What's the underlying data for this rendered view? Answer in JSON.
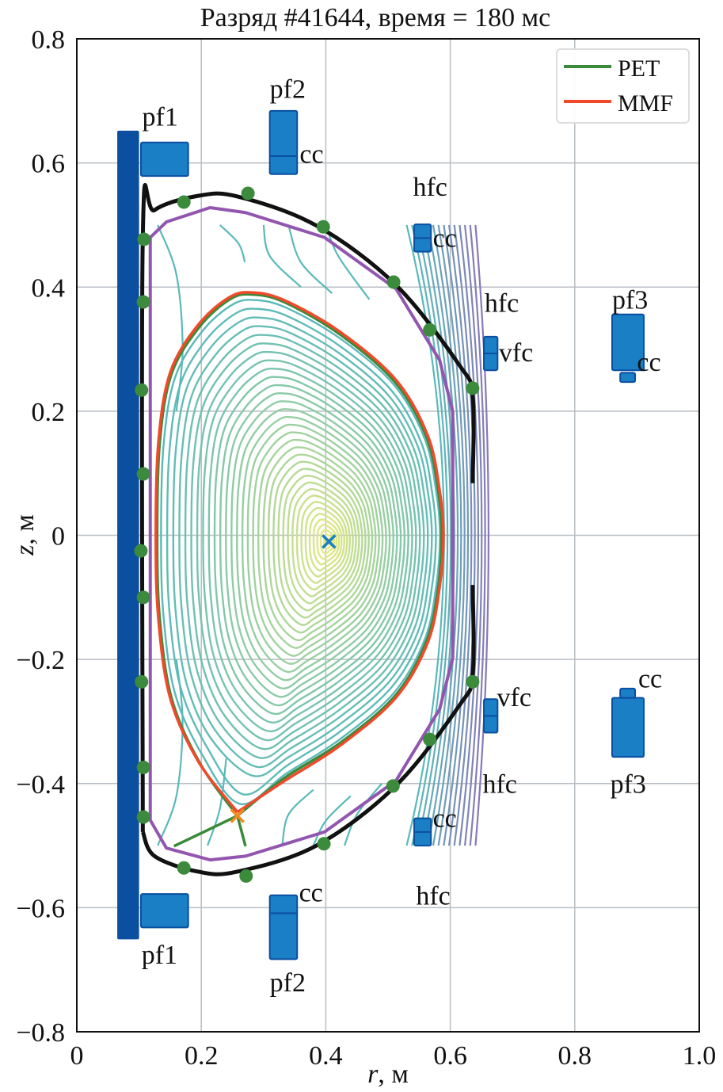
{
  "chart_data": {
    "type": "line",
    "title": "Разряд #41644, время = 180 мс",
    "xlabel": {
      "var": "r",
      "unit": ", м"
    },
    "ylabel": {
      "var": "z",
      "unit": ", м"
    },
    "xlim": [
      0,
      1.0
    ],
    "ylim": [
      -0.8,
      0.8
    ],
    "xticks": [
      "0",
      "0.2",
      "0.4",
      "0.6",
      "0.8",
      "1.0"
    ],
    "xtick_values": [
      0,
      0.2,
      0.4,
      0.6,
      0.8,
      1.0
    ],
    "yticks": [
      "−0.8",
      "−0.6",
      "−0.4",
      "−0.2",
      "0",
      "0.2",
      "0.4",
      "0.6",
      "0.8"
    ],
    "ytick_values": [
      -0.8,
      -0.6,
      -0.4,
      -0.2,
      0,
      0.2,
      0.4,
      0.6,
      0.8
    ],
    "grid": true,
    "legend": {
      "placement": "top-right",
      "entries": [
        {
          "name": "PET",
          "color": "#3a8a3a"
        },
        {
          "name": "MMF",
          "color": "#f04a2a"
        }
      ]
    },
    "colors": {
      "limiter": "#111111",
      "vessel": "#9256b0",
      "probes": "#3c8a3c",
      "coil_fill": "#1a7fc4",
      "coil_edge": "#0a4fa0",
      "solenoid": "#0a4fa0",
      "axis_marker": "#1a80c0",
      "xpoint_marker": "#f08a20",
      "contour_inner": "#f0ee80",
      "contour_mid": "#5ab9b9",
      "contour_outer": "#8878b8"
    },
    "magnetic_axis": {
      "r": 0.405,
      "z": -0.01
    },
    "x_point": {
      "r": 0.258,
      "z": -0.452
    },
    "limiter_upper": [
      [
        0.106,
        -0.478
      ],
      [
        0.106,
        0.48
      ],
      [
        0.125,
        0.524
      ],
      [
        0.195,
        0.547
      ],
      [
        0.258,
        0.546
      ],
      [
        0.385,
        0.499
      ],
      [
        0.513,
        0.403
      ],
      [
        0.614,
        0.275
      ],
      [
        0.636,
        0.224
      ],
      [
        0.636,
        0.084
      ]
    ],
    "limiter_lower": [
      [
        0.636,
        -0.08
      ],
      [
        0.636,
        -0.224
      ],
      [
        0.614,
        -0.275
      ],
      [
        0.513,
        -0.403
      ],
      [
        0.385,
        -0.5
      ],
      [
        0.258,
        -0.542
      ],
      [
        0.195,
        -0.542
      ],
      [
        0.125,
        -0.517
      ],
      [
        0.106,
        -0.478
      ]
    ],
    "vessel": [
      [
        0.118,
        0.48
      ],
      [
        0.144,
        0.505
      ],
      [
        0.214,
        0.528
      ],
      [
        0.271,
        0.52
      ],
      [
        0.398,
        0.48
      ],
      [
        0.513,
        0.397
      ],
      [
        0.583,
        0.282
      ],
      [
        0.604,
        0.199
      ],
      [
        0.604,
        -0.197
      ],
      [
        0.583,
        -0.28
      ],
      [
        0.513,
        -0.395
      ],
      [
        0.398,
        -0.478
      ],
      [
        0.271,
        -0.517
      ],
      [
        0.214,
        -0.523
      ],
      [
        0.144,
        -0.504
      ],
      [
        0.118,
        -0.459
      ],
      [
        0.118,
        0.48
      ]
    ],
    "series": [
      {
        "name": "MMF",
        "points": [
          [
            0.258,
            -0.446
          ],
          [
            0.195,
            -0.364
          ],
          [
            0.15,
            -0.262
          ],
          [
            0.131,
            -0.133
          ],
          [
            0.127,
            0
          ],
          [
            0.131,
            0.148
          ],
          [
            0.15,
            0.262
          ],
          [
            0.195,
            0.339
          ],
          [
            0.246,
            0.384
          ],
          [
            0.284,
            0.391
          ],
          [
            0.335,
            0.378
          ],
          [
            0.424,
            0.327
          ],
          [
            0.513,
            0.25
          ],
          [
            0.564,
            0.16
          ],
          [
            0.583,
            0.071
          ],
          [
            0.589,
            0
          ],
          [
            0.583,
            -0.082
          ],
          [
            0.564,
            -0.172
          ],
          [
            0.513,
            -0.261
          ],
          [
            0.424,
            -0.338
          ],
          [
            0.335,
            -0.395
          ],
          [
            0.258,
            -0.446
          ]
        ]
      },
      {
        "name": "PET",
        "points": [
          [
            0.258,
            -0.452
          ],
          [
            0.197,
            -0.366
          ],
          [
            0.152,
            -0.262
          ],
          [
            0.133,
            -0.133
          ],
          [
            0.129,
            0
          ],
          [
            0.133,
            0.148
          ],
          [
            0.152,
            0.26
          ],
          [
            0.197,
            0.336
          ],
          [
            0.247,
            0.381
          ],
          [
            0.284,
            0.388
          ],
          [
            0.335,
            0.375
          ],
          [
            0.424,
            0.323
          ],
          [
            0.512,
            0.246
          ],
          [
            0.562,
            0.158
          ],
          [
            0.581,
            0.07
          ],
          [
            0.586,
            0
          ],
          [
            0.581,
            -0.082
          ],
          [
            0.562,
            -0.17
          ],
          [
            0.512,
            -0.258
          ],
          [
            0.424,
            -0.334
          ],
          [
            0.335,
            -0.39
          ],
          [
            0.258,
            -0.452
          ]
        ],
        "legs": [
          [
            [
              0.258,
              -0.452
            ],
            [
              0.156,
              -0.501
            ]
          ],
          [
            [
              0.258,
              -0.452
            ],
            [
              0.271,
              -0.501
            ]
          ]
        ]
      }
    ],
    "probes": [
      [
        0.172,
        0.537
      ],
      [
        0.275,
        0.551
      ],
      [
        0.396,
        0.497
      ],
      [
        0.509,
        0.408
      ],
      [
        0.567,
        0.331
      ],
      [
        0.636,
        0.237
      ],
      [
        0.108,
        0.477
      ],
      [
        0.107,
        0.376
      ],
      [
        0.104,
        0.234
      ],
      [
        0.107,
        0.099
      ],
      [
        0.103,
        -0.025
      ],
      [
        0.107,
        -0.1
      ],
      [
        0.104,
        -0.236
      ],
      [
        0.107,
        -0.374
      ],
      [
        0.107,
        -0.454
      ],
      [
        0.172,
        -0.536
      ],
      [
        0.272,
        -0.549
      ],
      [
        0.397,
        -0.497
      ],
      [
        0.508,
        -0.404
      ],
      [
        0.567,
        -0.329
      ],
      [
        0.636,
        -0.236
      ]
    ],
    "solenoid": {
      "r": [
        0.065,
        0.1
      ],
      "z": [
        -0.651,
        0.652
      ]
    },
    "coils": [
      {
        "name": "pf1",
        "r": [
          0.103,
          0.179
        ],
        "z": [
          0.579,
          0.633
        ]
      },
      {
        "name": "pf1",
        "r": [
          0.103,
          0.179
        ],
        "z": [
          -0.632,
          -0.578
        ]
      },
      {
        "name": "pf2",
        "r": [
          0.31,
          0.354
        ],
        "z": [
          0.582,
          0.684
        ],
        "split": 0.611
      },
      {
        "name": "pf2",
        "r": [
          0.31,
          0.354
        ],
        "z": [
          -0.683,
          -0.58
        ],
        "split": -0.609
      },
      {
        "name": "hfc",
        "r": [
          0.542,
          0.569
        ],
        "z": [
          0.457,
          0.501
        ],
        "split": 0.479
      },
      {
        "name": "hfc",
        "r": [
          0.542,
          0.569
        ],
        "z": [
          -0.5,
          -0.456
        ],
        "split": -0.478
      },
      {
        "name": "vfc",
        "r": [
          0.654,
          0.676
        ],
        "z": [
          0.266,
          0.32
        ],
        "split": 0.293
      },
      {
        "name": "vfc",
        "r": [
          0.654,
          0.676
        ],
        "z": [
          -0.318,
          -0.264
        ],
        "split": -0.291
      },
      {
        "name": "pf3",
        "r": [
          0.86,
          0.911
        ],
        "z": [
          0.266,
          0.356
        ]
      },
      {
        "name": "cc",
        "r": [
          0.873,
          0.897
        ],
        "z": [
          0.247,
          0.262
        ]
      },
      {
        "name": "pf3",
        "r": [
          0.86,
          0.911
        ],
        "z": [
          -0.357,
          -0.262
        ]
      },
      {
        "name": "cc",
        "r": [
          0.873,
          0.897
        ],
        "z": [
          -0.262,
          -0.247
        ]
      }
    ],
    "annotations": [
      {
        "text": "pf1",
        "r": 0.105,
        "z": 0.66
      },
      {
        "text": "pf2",
        "r": 0.31,
        "z": 0.705
      },
      {
        "text": "cc",
        "r": 0.358,
        "z": 0.6
      },
      {
        "text": "hfc",
        "r": 0.54,
        "z": 0.547
      },
      {
        "text": "cc",
        "r": 0.572,
        "z": 0.465
      },
      {
        "text": "hfc",
        "r": 0.655,
        "z": 0.36
      },
      {
        "text": "vfc",
        "r": 0.678,
        "z": 0.28
      },
      {
        "text": "pf3",
        "r": 0.86,
        "z": 0.365
      },
      {
        "text": "cc",
        "r": 0.9,
        "z": 0.265
      },
      {
        "text": "vfc",
        "r": 0.675,
        "z": -0.275
      },
      {
        "text": "cc",
        "r": 0.902,
        "z": -0.245
      },
      {
        "text": "hfc",
        "r": 0.652,
        "z": -0.415
      },
      {
        "text": "pf3",
        "r": 0.857,
        "z": -0.415
      },
      {
        "text": "cc",
        "r": 0.572,
        "z": -0.47
      },
      {
        "text": "hfc",
        "r": 0.545,
        "z": -0.595
      },
      {
        "text": "cc",
        "r": 0.357,
        "z": -0.59
      },
      {
        "text": "pf1",
        "r": 0.104,
        "z": -0.69
      },
      {
        "text": "pf2",
        "r": 0.31,
        "z": -0.735
      }
    ]
  }
}
